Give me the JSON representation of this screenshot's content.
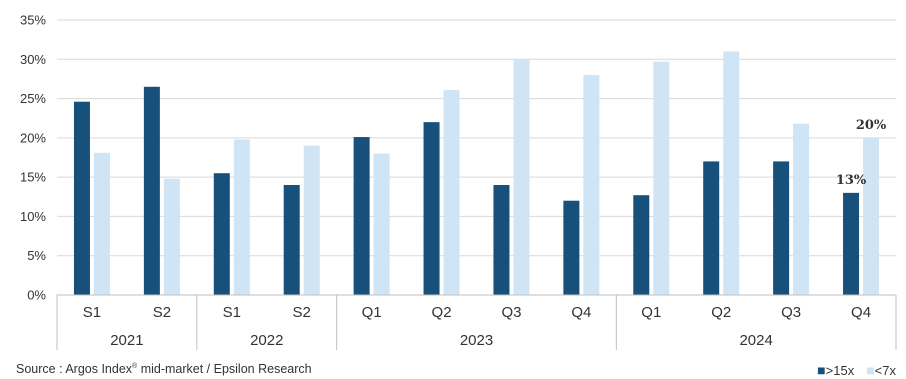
{
  "chart_data": {
    "type": "bar",
    "categories": [
      "S1",
      "S2",
      "S1",
      "S2",
      "Q1",
      "Q2",
      "Q3",
      "Q4",
      "Q1",
      "Q2",
      "Q3",
      "Q4"
    ],
    "groups": [
      {
        "label": "2021",
        "count": 2
      },
      {
        "label": "2022",
        "count": 2
      },
      {
        "label": "2023",
        "count": 4
      },
      {
        "label": "2024",
        "count": 4
      }
    ],
    "series": [
      {
        "name": ">15x",
        "color": "#17507a",
        "values": [
          24.6,
          26.5,
          15.5,
          14.0,
          20.1,
          22.0,
          14.0,
          12.0,
          12.7,
          17.0,
          17.0,
          13.0
        ]
      },
      {
        "name": "<7x",
        "color": "#cfe4f5",
        "values": [
          18.1,
          14.8,
          19.8,
          19.0,
          18.0,
          26.1,
          30.0,
          28.0,
          29.7,
          31.0,
          21.8,
          20.0
        ]
      }
    ],
    "data_labels": [
      {
        "series": 0,
        "index": 11,
        "text": "13%"
      },
      {
        "series": 1,
        "index": 11,
        "text": "20%"
      }
    ],
    "y_ticks": [
      "0%",
      "5%",
      "10%",
      "15%",
      "20%",
      "25%",
      "30%",
      "35%"
    ],
    "ylim": [
      0,
      35
    ],
    "grid": true,
    "legend_position": "bottom-right"
  },
  "source": {
    "prefix": "Source : Argos Index",
    "sup": "®",
    "suffix": " mid-market / Epsilon Research"
  },
  "legend": {
    "items": [
      {
        "label": "■>15x",
        "color": "#17507a"
      },
      {
        "label": "■<7x",
        "color": "#cfe4f5"
      }
    ]
  }
}
